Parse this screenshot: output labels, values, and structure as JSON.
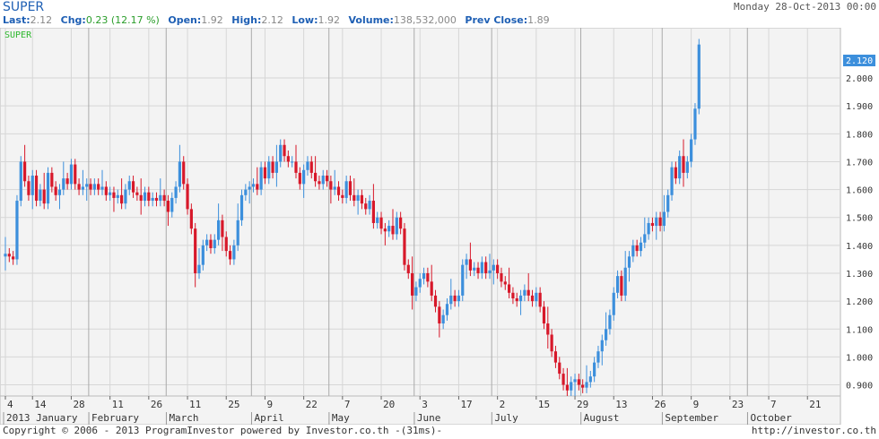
{
  "header": {
    "ticker": "SUPER",
    "date": "Monday 28-Oct-2013 00:00"
  },
  "quote": {
    "last_label": "Last:",
    "last": "2.12",
    "chg_label": "Chg:",
    "chg": "0.23 (12.17 %)",
    "open_label": "Open:",
    "open": "1.92",
    "high_label": "High:",
    "high": "2.12",
    "low_label": "Low:",
    "low": "1.92",
    "volume_label": "Volume:",
    "volume": "138,532,000",
    "prev_label": "Prev Close:",
    "prev": "1.89"
  },
  "footer": {
    "copyright": "Copyright © 2006 - 2013 ProgramInvestor powered by Investor.co.th -(31ms)-",
    "url": "http://investor.co.th"
  },
  "colors": {
    "up": "#3c8fdc",
    "down": "#d7182a",
    "grid": "#d6d6d6",
    "plot_bg": "#f3f3f3",
    "label": "#2eb82e",
    "last_tag": "#3c8fdc"
  },
  "chart_data": {
    "type": "candlestick",
    "series_label": "SUPER",
    "last_price_tag": "2.120",
    "ylim": [
      0.86,
      2.18
    ],
    "yticks": [
      "0.900",
      "1.000",
      "1.100",
      "1.200",
      "1.300",
      "1.400",
      "1.500",
      "1.600",
      "1.700",
      "1.800",
      "1.900",
      "2.000"
    ],
    "day_labels": [
      {
        "i": 0,
        "t": "4"
      },
      {
        "i": 7,
        "t": "14"
      },
      {
        "i": 17,
        "t": "28"
      },
      {
        "i": 27,
        "t": "11"
      },
      {
        "i": 37,
        "t": "26"
      },
      {
        "i": 47,
        "t": "11"
      },
      {
        "i": 57,
        "t": "25"
      },
      {
        "i": 67,
        "t": "9"
      },
      {
        "i": 77,
        "t": "22"
      },
      {
        "i": 87,
        "t": "7"
      },
      {
        "i": 97,
        "t": "20"
      },
      {
        "i": 107,
        "t": "3"
      },
      {
        "i": 117,
        "t": "17"
      },
      {
        "i": 127,
        "t": "2"
      },
      {
        "i": 137,
        "t": "15"
      },
      {
        "i": 147,
        "t": "29"
      },
      {
        "i": 157,
        "t": "13"
      },
      {
        "i": 167,
        "t": "26"
      },
      {
        "i": 177,
        "t": "9"
      },
      {
        "i": 187,
        "t": "23"
      },
      {
        "i": 197,
        "t": "7"
      },
      {
        "i": 207,
        "t": "21"
      }
    ],
    "months": [
      {
        "i": 0,
        "t": "2013 January"
      },
      {
        "i": 22,
        "t": "February"
      },
      {
        "i": 42,
        "t": "March"
      },
      {
        "i": 64,
        "t": "April"
      },
      {
        "i": 84,
        "t": "May"
      },
      {
        "i": 106,
        "t": "June"
      },
      {
        "i": 126,
        "t": "July"
      },
      {
        "i": 149,
        "t": "August"
      },
      {
        "i": 170,
        "t": "September"
      },
      {
        "i": 192,
        "t": "October"
      }
    ],
    "month_dividers": [
      21,
      41,
      63,
      83,
      105,
      125,
      148,
      169,
      191
    ],
    "closes": [
      1.37,
      1.36,
      1.35,
      1.56,
      1.7,
      1.63,
      1.58,
      1.65,
      1.56,
      1.6,
      1.55,
      1.66,
      1.61,
      1.58,
      1.6,
      1.64,
      1.62,
      1.69,
      1.62,
      1.6,
      1.61,
      1.62,
      1.6,
      1.62,
      1.6,
      1.61,
      1.58,
      1.59,
      1.57,
      1.58,
      1.55,
      1.6,
      1.63,
      1.59,
      1.58,
      1.56,
      1.59,
      1.56,
      1.57,
      1.56,
      1.58,
      1.56,
      1.52,
      1.57,
      1.61,
      1.7,
      1.62,
      1.53,
      1.46,
      1.3,
      1.33,
      1.4,
      1.42,
      1.39,
      1.42,
      1.49,
      1.43,
      1.38,
      1.35,
      1.4,
      1.49,
      1.58,
      1.6,
      1.61,
      1.62,
      1.6,
      1.68,
      1.64,
      1.7,
      1.66,
      1.7,
      1.76,
      1.72,
      1.7,
      1.7,
      1.66,
      1.62,
      1.67,
      1.7,
      1.66,
      1.63,
      1.62,
      1.65,
      1.63,
      1.6,
      1.61,
      1.58,
      1.57,
      1.63,
      1.58,
      1.56,
      1.58,
      1.55,
      1.53,
      1.56,
      1.48,
      1.5,
      1.46,
      1.45,
      1.47,
      1.44,
      1.5,
      1.46,
      1.33,
      1.3,
      1.22,
      1.25,
      1.28,
      1.3,
      1.27,
      1.22,
      1.18,
      1.12,
      1.15,
      1.19,
      1.22,
      1.2,
      1.22,
      1.33,
      1.35,
      1.31,
      1.32,
      1.3,
      1.34,
      1.3,
      1.31,
      1.33,
      1.3,
      1.27,
      1.26,
      1.23,
      1.21,
      1.2,
      1.22,
      1.24,
      1.22,
      1.2,
      1.23,
      1.18,
      1.12,
      1.08,
      1.02,
      0.98,
      0.94,
      0.9,
      0.88,
      0.91,
      0.92,
      0.9,
      0.89,
      0.91,
      0.93,
      0.98,
      1.02,
      1.06,
      1.1,
      1.15,
      1.23,
      1.29,
      1.22,
      1.32,
      1.36,
      1.4,
      1.38,
      1.41,
      1.44,
      1.48,
      1.47,
      1.5,
      1.47,
      1.52,
      1.58,
      1.68,
      1.64,
      1.72,
      1.66,
      1.7,
      1.78,
      1.89,
      2.12
    ]
  }
}
